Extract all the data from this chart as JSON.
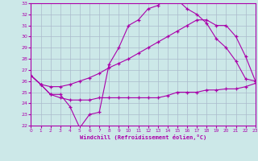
{
  "xlabel": "Windchill (Refroidissement éolien,°C)",
  "bg_color": "#cce8e8",
  "grid_color": "#aabbcc",
  "line_color": "#aa00aa",
  "x_min": 0,
  "x_max": 23,
  "y_min": 22,
  "y_max": 33,
  "curve1_x": [
    0,
    1,
    2,
    3,
    4,
    5,
    6,
    7,
    8,
    9,
    10,
    11,
    12,
    13,
    14,
    15,
    16,
    17,
    18,
    19,
    20,
    21,
    22,
    23
  ],
  "curve1_y": [
    26.5,
    25.7,
    24.8,
    24.8,
    23.7,
    21.8,
    23.0,
    23.2,
    27.5,
    29.0,
    31.0,
    31.5,
    32.5,
    32.8,
    33.5,
    33.3,
    32.5,
    32.0,
    31.2,
    29.8,
    29.0,
    27.8,
    26.2,
    26.0
  ],
  "curve2_x": [
    0,
    1,
    2,
    3,
    4,
    5,
    6,
    7,
    8,
    9,
    10,
    11,
    12,
    13,
    14,
    15,
    16,
    17,
    18,
    19,
    20,
    21,
    22,
    23
  ],
  "curve2_y": [
    26.5,
    25.7,
    25.5,
    25.5,
    25.7,
    26.0,
    26.3,
    26.7,
    27.2,
    27.6,
    28.0,
    28.5,
    29.0,
    29.5,
    30.0,
    30.5,
    31.0,
    31.5,
    31.5,
    31.0,
    31.0,
    30.0,
    28.2,
    26.0
  ],
  "curve3_x": [
    0,
    1,
    2,
    3,
    4,
    5,
    6,
    7,
    8,
    9,
    10,
    11,
    12,
    13,
    14,
    15,
    16,
    17,
    18,
    19,
    20,
    21,
    22,
    23
  ],
  "curve3_y": [
    26.5,
    25.7,
    24.8,
    24.5,
    24.3,
    24.3,
    24.3,
    24.5,
    24.5,
    24.5,
    24.5,
    24.5,
    24.5,
    24.5,
    24.7,
    25.0,
    25.0,
    25.0,
    25.2,
    25.2,
    25.3,
    25.3,
    25.5,
    25.8
  ]
}
